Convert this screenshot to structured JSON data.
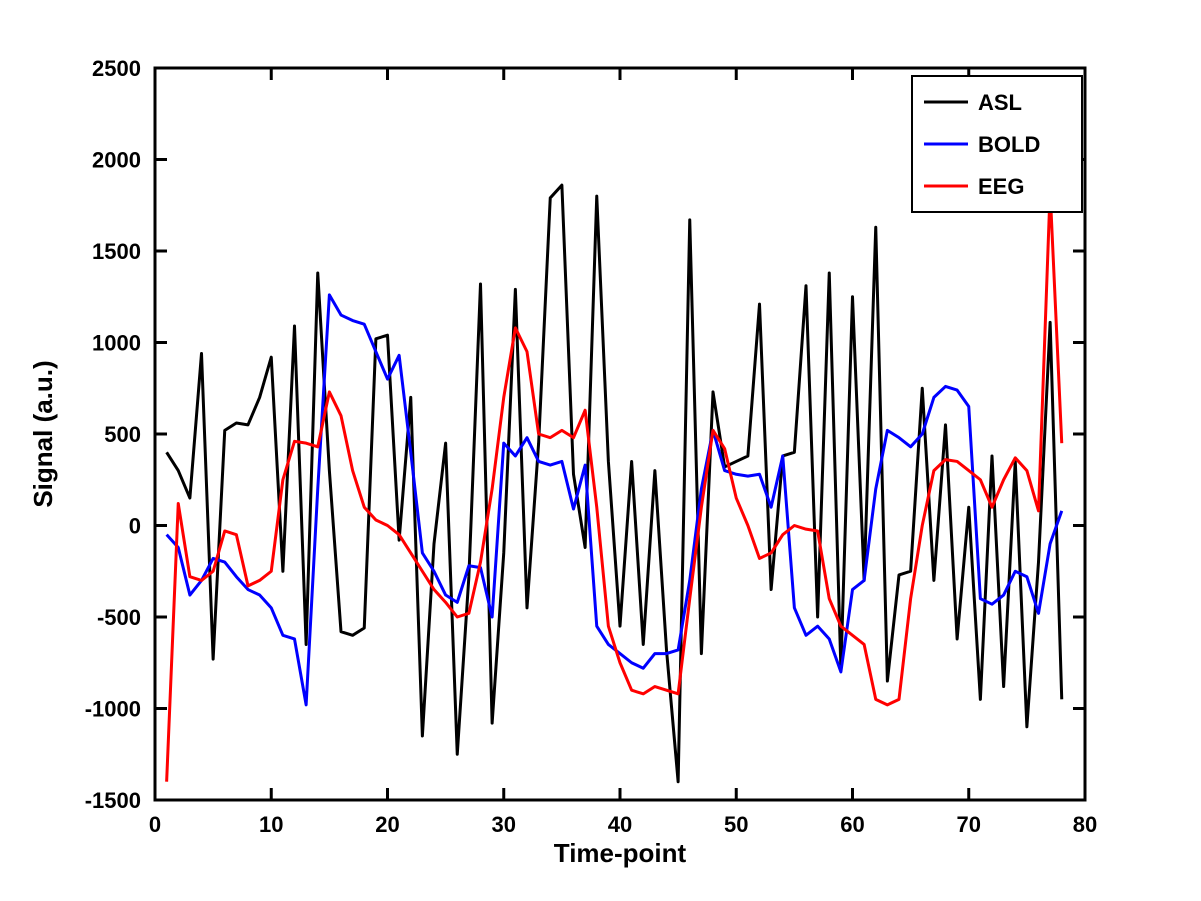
{
  "chart_data": {
    "type": "line",
    "title": "",
    "xlabel": "Time-point",
    "ylabel": "Signal (a.u.)",
    "xlim": [
      0,
      80
    ],
    "ylim": [
      -1500,
      2500
    ],
    "xticks": [
      0,
      10,
      20,
      30,
      40,
      50,
      60,
      70,
      80
    ],
    "yticks": [
      -1500,
      -1000,
      -500,
      0,
      500,
      1000,
      1500,
      2000,
      2500
    ],
    "grid": false,
    "legend_position": "top-right",
    "axis_color": "#000000",
    "background_color": "#ffffff",
    "x": [
      1,
      2,
      3,
      4,
      5,
      6,
      7,
      8,
      9,
      10,
      11,
      12,
      13,
      14,
      15,
      16,
      17,
      18,
      19,
      20,
      21,
      22,
      23,
      24,
      25,
      26,
      27,
      28,
      29,
      30,
      31,
      32,
      33,
      34,
      35,
      36,
      37,
      38,
      39,
      40,
      41,
      42,
      43,
      44,
      45,
      46,
      47,
      48,
      49,
      50,
      51,
      52,
      53,
      54,
      55,
      56,
      57,
      58,
      59,
      60,
      61,
      62,
      63,
      64,
      65,
      66,
      67,
      68,
      69,
      70,
      71,
      72,
      73,
      74,
      75,
      76,
      77,
      78
    ],
    "series": [
      {
        "name": "ASL",
        "color": "#000000",
        "values": [
          400,
          300,
          150,
          940,
          -730,
          520,
          560,
          550,
          700,
          920,
          -250,
          1090,
          -650,
          1380,
          300,
          -580,
          -600,
          -560,
          1020,
          1040,
          -80,
          700,
          -1150,
          -100,
          450,
          -1250,
          -280,
          1320,
          -1080,
          -150,
          1290,
          -450,
          450,
          1790,
          1860,
          280,
          -120,
          1800,
          350,
          -550,
          350,
          -650,
          300,
          -680,
          -1400,
          1670,
          -700,
          730,
          320,
          350,
          380,
          1210,
          -350,
          380,
          400,
          1310,
          -500,
          1380,
          -780,
          1250,
          -300,
          1630,
          -850,
          -270,
          -250,
          750,
          -300,
          550,
          -620,
          100,
          -950,
          380,
          -880,
          350,
          -1100,
          -200,
          1110,
          -950
        ]
      },
      {
        "name": "BOLD",
        "color": "#0000ff",
        "values": [
          -50,
          -120,
          -380,
          -300,
          -180,
          -200,
          -280,
          -350,
          -380,
          -450,
          -600,
          -620,
          -980,
          200,
          1260,
          1150,
          1120,
          1100,
          950,
          800,
          930,
          400,
          -150,
          -250,
          -380,
          -420,
          -220,
          -230,
          -500,
          450,
          380,
          480,
          350,
          330,
          350,
          90,
          330,
          -550,
          -650,
          -700,
          -750,
          -780,
          -700,
          -700,
          -680,
          -300,
          200,
          520,
          300,
          280,
          270,
          280,
          100,
          380,
          -450,
          -600,
          -550,
          -620,
          -800,
          -350,
          -300,
          200,
          520,
          480,
          430,
          500,
          700,
          760,
          740,
          650,
          -400,
          -430,
          -380,
          -250,
          -280,
          -480,
          -100,
          80
        ]
      },
      {
        "name": "EEG",
        "color": "#ff0000",
        "values": [
          -1400,
          120,
          -280,
          -300,
          -250,
          -30,
          -50,
          -330,
          -300,
          -250,
          250,
          460,
          450,
          430,
          730,
          600,
          300,
          100,
          30,
          0,
          -50,
          -150,
          -250,
          -350,
          -420,
          -500,
          -480,
          -200,
          200,
          700,
          1080,
          950,
          500,
          480,
          520,
          480,
          630,
          100,
          -550,
          -750,
          -900,
          -920,
          -880,
          -900,
          -920,
          -400,
          100,
          520,
          420,
          150,
          0,
          -180,
          -150,
          -50,
          0,
          -20,
          -30,
          -400,
          -550,
          -600,
          -650,
          -950,
          -980,
          -950,
          -400,
          0,
          300,
          360,
          350,
          300,
          250,
          100,
          250,
          370,
          300,
          80,
          1830,
          450
        ]
      }
    ]
  }
}
